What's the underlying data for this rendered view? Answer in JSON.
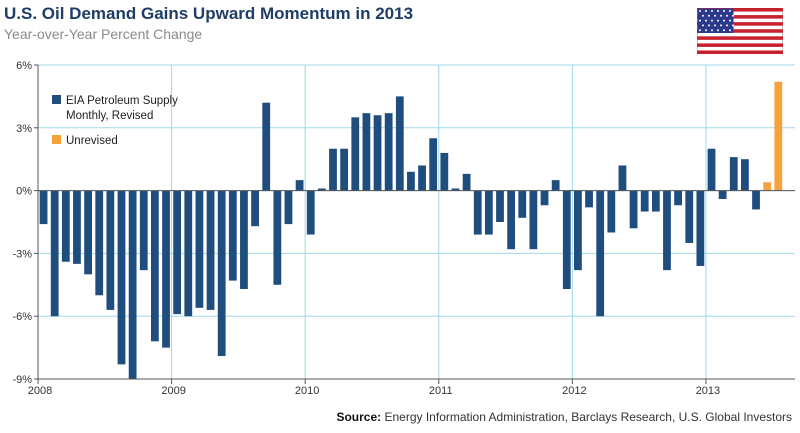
{
  "title": "U.S. Oil Demand Gains Upward Momentum in 2013",
  "subtitle": "Year-over-Year Percent Change",
  "source_label": "Source:",
  "source_text": " Energy Information Administration, Barclays Research, U.S. Global Investors",
  "flag_icon": "us-flag-icon",
  "colors": {
    "revised": "#1f4e7e",
    "unrevised": "#f7a13a",
    "grid": "#9fd8ea",
    "axis": "#555555"
  },
  "chart_data": {
    "type": "bar",
    "title": "U.S. Oil Demand Gains Upward Momentum in 2013",
    "subtitle": "Year-over-Year Percent Change",
    "ylim": [
      -9,
      6
    ],
    "yticks": [
      6,
      3,
      0,
      -3,
      -6,
      -9
    ],
    "ytick_labels": [
      "6%",
      "3%",
      "0%",
      "-3%",
      "-6%",
      "-9%"
    ],
    "xtick_labels": [
      "2008",
      "2009",
      "2010",
      "2011",
      "2012",
      "2013"
    ],
    "grid": true,
    "legend": {
      "placement": "top-left",
      "entries": [
        "EIA Petroleum Supply Monthly, Revised",
        "Unrevised"
      ]
    },
    "series": [
      {
        "name": "EIA Petroleum Supply Monthly, Revised",
        "start": "2008-01",
        "values": [
          -1.6,
          -6.0,
          -3.4,
          -3.5,
          -4.0,
          -5.0,
          -5.7,
          -8.3,
          -9.0,
          -3.8,
          -7.2,
          -7.5,
          -5.9,
          -6.0,
          -5.6,
          -5.7,
          -7.9,
          -4.3,
          -4.7,
          -1.7,
          4.2,
          -4.5,
          -1.6,
          0.5,
          -2.1,
          0.1,
          2.0,
          2.0,
          3.5,
          3.7,
          3.6,
          3.7,
          4.5,
          0.9,
          1.2,
          2.5,
          1.8,
          0.1,
          0.8,
          -2.1,
          -2.1,
          -1.5,
          -2.8,
          -1.3,
          -2.8,
          -0.7,
          0.5,
          -4.7,
          -3.8,
          -0.8,
          -6.0,
          -2.0,
          1.2,
          -1.8,
          -1.0,
          -1.0,
          -3.8,
          -0.7,
          -2.5,
          -3.6,
          2.0,
          -0.4,
          1.6,
          1.5,
          -0.9
        ]
      },
      {
        "name": "Unrevised",
        "start": "2013-06",
        "values": [
          0.4,
          5.2
        ]
      }
    ]
  }
}
